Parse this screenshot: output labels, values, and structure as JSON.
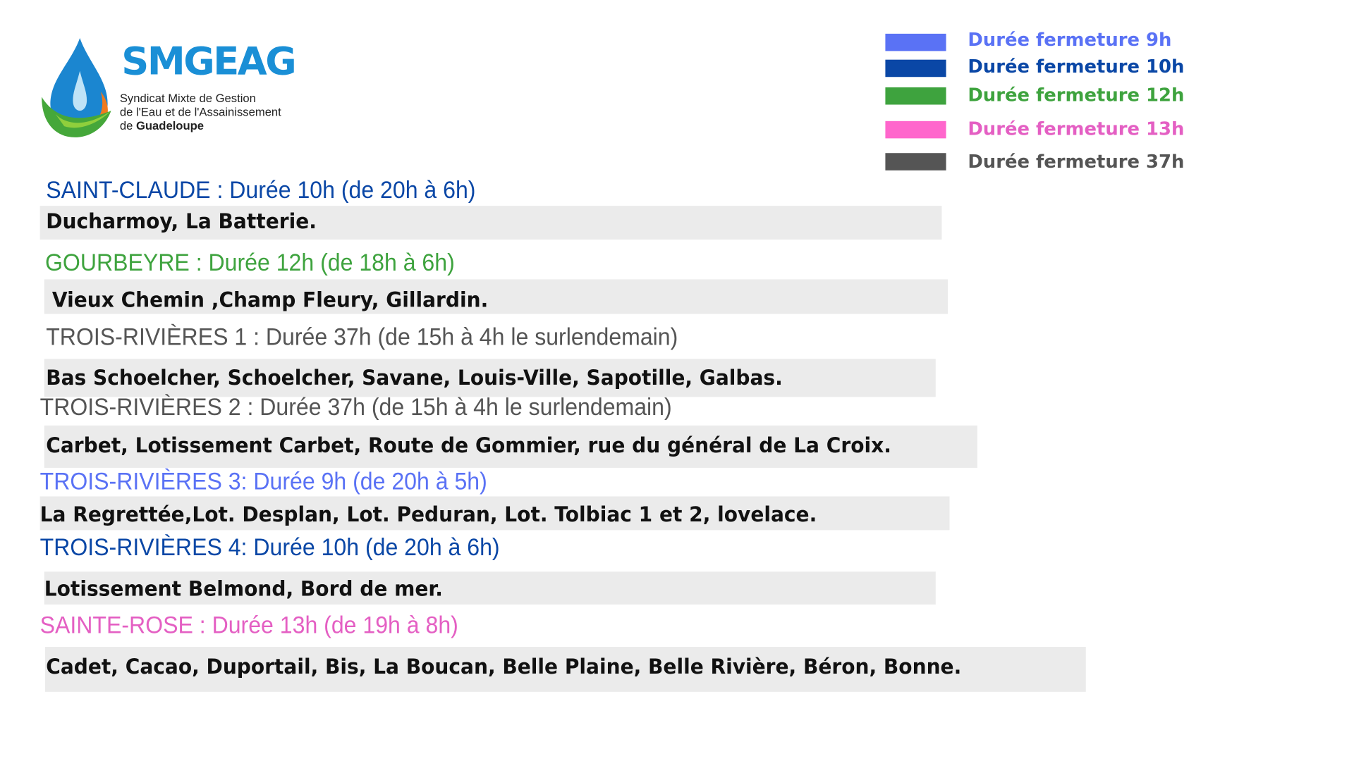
{
  "logo": {
    "name": "SMGEAG",
    "subtitle_line1": "Syndicat Mixte de Gestion",
    "subtitle_line2": "de l'Eau et de l'Assainissement",
    "subtitle_line3_prefix": "de",
    "subtitle_line3_bold": "Guadeloupe"
  },
  "colors": {
    "h9": "#5a72f5",
    "h10": "#0a47a6",
    "h12": "#3ea33e",
    "h13": "#ff66cc",
    "h37": "#555555",
    "row_background": "#ebebeb"
  },
  "legend": [
    {
      "label": "Durée fermeture 9h",
      "color": "#5a72f5",
      "text_color": "#5a72f5"
    },
    {
      "label": "Durée fermeture 10h",
      "color": "#0a47a6",
      "text_color": "#0a47a6"
    },
    {
      "label": "Durée fermeture 12h",
      "color": "#3ea33e",
      "text_color": "#3ea33e"
    },
    {
      "label": "Durée fermeture 13h",
      "color": "#ff66cc",
      "text_color": "#e45fc3"
    },
    {
      "label": "Durée fermeture 37h",
      "color": "#555555",
      "text_color": "#555555"
    }
  ],
  "sections": [
    {
      "heading": "SAINT-CLAUDE : Durée 10h (de 20h à 6h)",
      "color": "#0a47a6",
      "areas": "Ducharmoy, La Batterie."
    },
    {
      "heading": "GOURBEYRE : Durée 12h (de 18h à 6h)",
      "color": "#3ea33e",
      "areas": "Vieux Chemin ,Champ Fleury, Gillardin."
    },
    {
      "heading": "TROIS-RIVIÈRES 1 : Durée 37h (de 15h à 4h le surlendemain)",
      "color": "#555555",
      "areas": "Bas Schoelcher, Schoelcher, Savane, Louis-Ville, Sapotille, Galbas."
    },
    {
      "heading": "TROIS-RIVIÈRES 2 : Durée 37h (de 15h à 4h le surlendemain)",
      "color": "#555555",
      "areas": "Carbet, Lotissement Carbet, Route de Gommier, rue du général de La Croix."
    },
    {
      "heading": "TROIS-RIVIÈRES 3: Durée 9h (de 20h à 5h)",
      "color": "#5a72f5",
      "areas": "La Regrettée,Lot. Desplan, Lot. Peduran, Lot. Tolbiac 1 et 2, lovelace."
    },
    {
      "heading": "TROIS-RIVIÈRES 4: Durée 10h (de 20h à 6h)",
      "color": "#0a47a6",
      "areas": "Lotissement Belmond, Bord de mer."
    },
    {
      "heading": "SAINTE-ROSE  : Durée 13h (de 19h à 8h)",
      "color": "#e45fc3",
      "areas": "Cadet, Cacao, Duportail, Bis, La Boucan, Belle Plaine, Belle Rivière, Béron, Bonne."
    }
  ]
}
